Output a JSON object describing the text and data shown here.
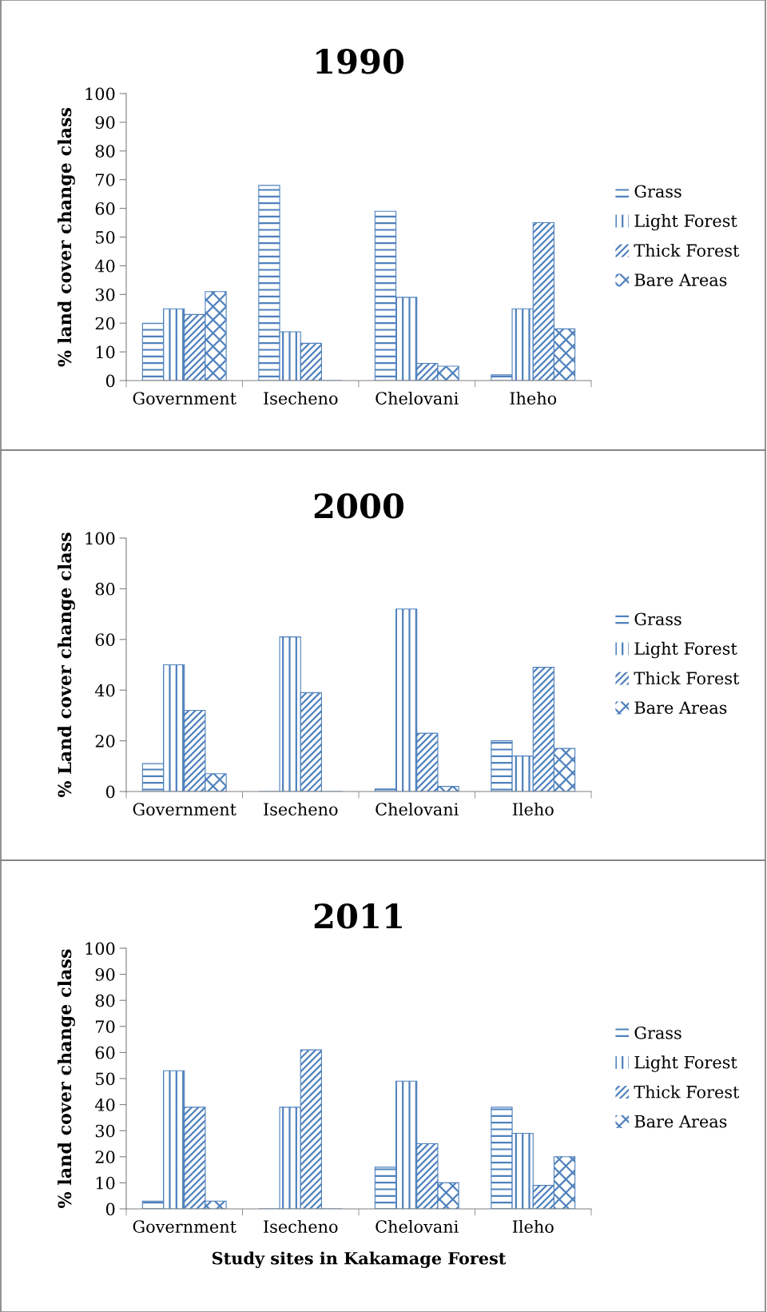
{
  "chart_data": [
    {
      "type": "bar",
      "title": "1990",
      "ylabel": "% land cover change class",
      "categories": [
        "Government",
        "Isecheno",
        "Chelovani",
        "Iheho"
      ],
      "ylim": [
        0,
        100
      ],
      "yticks": [
        0,
        10,
        20,
        30,
        40,
        50,
        60,
        70,
        80,
        90,
        100
      ],
      "grid": false,
      "legend": "right",
      "series": [
        {
          "name": "Grass",
          "color": "#4f81bd",
          "values": [
            20,
            68,
            59,
            2
          ]
        },
        {
          "name": "Light Forest",
          "color": "#4f81bd",
          "values": [
            25,
            17,
            29,
            25
          ]
        },
        {
          "name": "Thick Forest",
          "color": "#4f81bd",
          "values": [
            23,
            13,
            6,
            55
          ]
        },
        {
          "name": "Bare Areas",
          "color": "#4f81bd",
          "values": [
            31,
            0,
            5,
            18
          ]
        }
      ]
    },
    {
      "type": "bar",
      "title": "2000",
      "ylabel": "% Land cover change class",
      "categories": [
        "Government",
        "Isecheno",
        "Chelovani",
        "Ileho"
      ],
      "ylim": [
        0,
        100
      ],
      "yticks": [
        0,
        20,
        40,
        60,
        80,
        100
      ],
      "grid": false,
      "legend": "right",
      "series": [
        {
          "name": "Grass",
          "color": "#4f81bd",
          "values": [
            11,
            0,
            1,
            20
          ]
        },
        {
          "name": "Light Forest",
          "color": "#4f81bd",
          "values": [
            50,
            61,
            72,
            14
          ]
        },
        {
          "name": "Thick Forest",
          "color": "#4f81bd",
          "values": [
            32,
            39,
            23,
            49
          ]
        },
        {
          "name": "Bare Areas",
          "color": "#4f81bd",
          "values": [
            7,
            0,
            2,
            17
          ]
        }
      ]
    },
    {
      "type": "bar",
      "title": "2011",
      "ylabel": "% land cover change class",
      "xlabel": "Study sites in Kakamage Forest",
      "categories": [
        "Government",
        "Isecheno",
        "Chelovani",
        "Ileho"
      ],
      "ylim": [
        0,
        100
      ],
      "yticks": [
        0,
        10,
        20,
        30,
        40,
        50,
        60,
        70,
        80,
        90,
        100
      ],
      "grid": false,
      "legend": "right",
      "series": [
        {
          "name": "Grass",
          "color": "#4f81bd",
          "values": [
            3,
            0,
            16,
            39
          ]
        },
        {
          "name": "Light Forest",
          "color": "#4f81bd",
          "values": [
            53,
            39,
            49,
            29
          ]
        },
        {
          "name": "Thick Forest",
          "color": "#4f81bd",
          "values": [
            39,
            61,
            25,
            9
          ]
        },
        {
          "name": "Bare Areas",
          "color": "#4f81bd",
          "values": [
            3,
            0,
            10,
            20
          ]
        }
      ]
    }
  ]
}
